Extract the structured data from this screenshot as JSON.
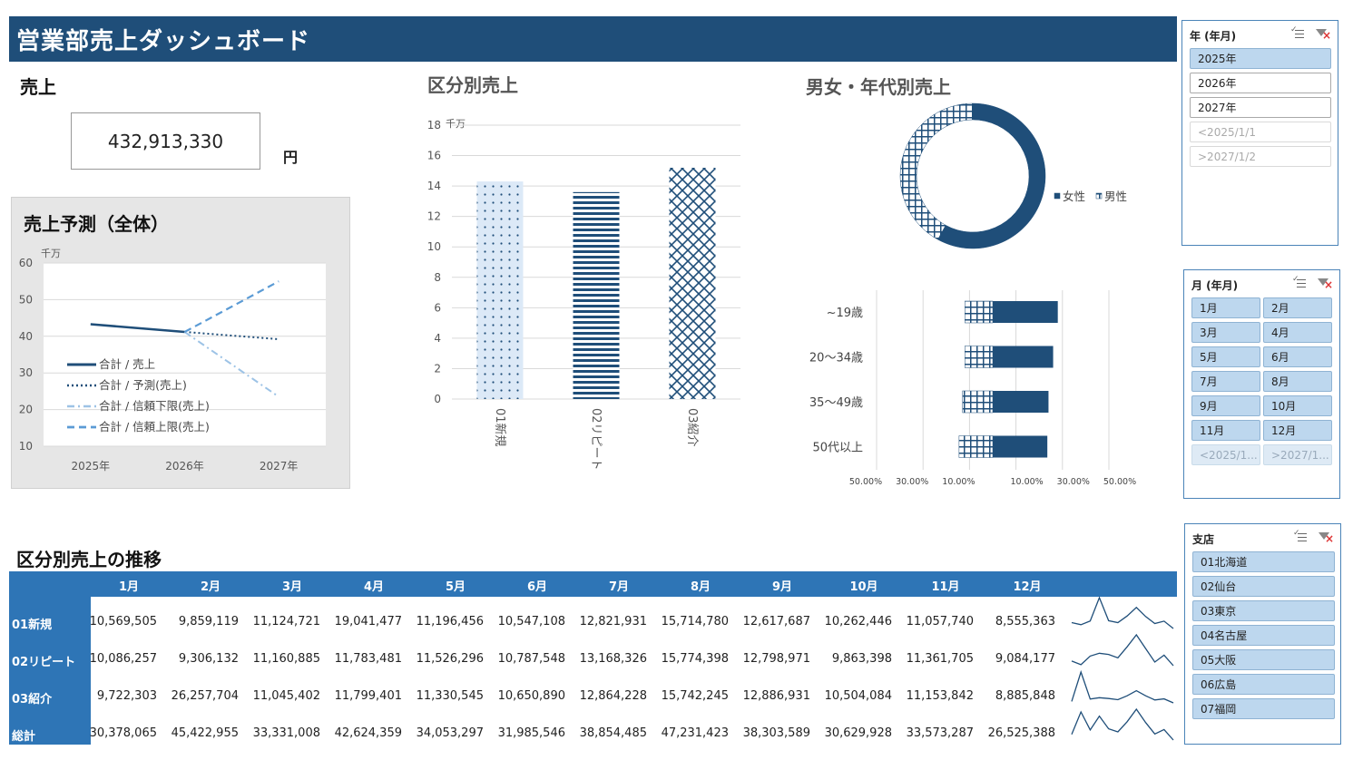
{
  "header": {
    "title": "営業部売上ダッシュボード"
  },
  "kpi": {
    "title": "売上",
    "value": "432,913,330",
    "unit": "円"
  },
  "forecast": {
    "title": "売上予測（全体）",
    "chart_data": {
      "type": "line",
      "unit_label": "千万",
      "categories": [
        "2025年",
        "2026年",
        "2027年"
      ],
      "ylim": [
        10,
        60
      ],
      "yticks": [
        "60",
        "50",
        "40",
        "30",
        "20",
        "10"
      ],
      "series": [
        {
          "name": "合計 / 売上",
          "values": [
            43.3,
            41.2,
            null
          ]
        },
        {
          "name": "合計 / 予測(売上)",
          "values": [
            null,
            41.2,
            39.2
          ]
        },
        {
          "name": "合計 / 信頼下限(売上)",
          "values": [
            null,
            41.2,
            23.5
          ]
        },
        {
          "name": "合計 / 信頼上限(売上)",
          "values": [
            null,
            41.2,
            55.0
          ]
        }
      ],
      "legend": "inside-left"
    }
  },
  "category_sales": {
    "title": "区分別売上",
    "chart_data": {
      "type": "bar",
      "unit_label": "千万",
      "categories": [
        "01新規",
        "02リピート",
        "03紹介"
      ],
      "values": [
        14.3,
        13.6,
        15.2
      ],
      "ylim": [
        0,
        18
      ],
      "yticks": [
        "18",
        "16",
        "14",
        "12",
        "10",
        "8",
        "6",
        "4",
        "2",
        "0"
      ]
    }
  },
  "gender_age": {
    "title": "男女・年代別売上",
    "donut": {
      "chart_data": {
        "type": "pie",
        "categories": [
          "女性",
          "男性"
        ],
        "values": [
          58,
          42
        ]
      }
    },
    "bars": {
      "chart_data": {
        "type": "bar",
        "orientation": "horizontal",
        "categories": [
          "~19歳",
          "20～34歳",
          "35～49歳",
          "50代以上"
        ],
        "series": [
          {
            "name": "男性",
            "values": [
              -12,
              -12,
              -13,
              -14.5
            ]
          },
          {
            "name": "女性",
            "values": [
              28,
              26,
              24,
              23.5
            ]
          }
        ],
        "xticks": [
          "50.00%",
          "30.00%",
          "10.00%",
          "10.00%",
          "30.00%",
          "50.00%"
        ]
      }
    }
  },
  "slicers": {
    "year": {
      "title": "年 (年月)",
      "items": [
        "2025年",
        "2026年",
        "2027年",
        "<2025/1/1",
        ">2027/1/2"
      ]
    },
    "month": {
      "title": "月 (年月)",
      "items": [
        "1月",
        "2月",
        "3月",
        "4月",
        "5月",
        "6月",
        "7月",
        "8月",
        "9月",
        "10月",
        "11月",
        "12月",
        "<2025/1...",
        ">2027/1..."
      ]
    },
    "branch": {
      "title": "支店",
      "items": [
        "01北海道",
        "02仙台",
        "03東京",
        "04名古屋",
        "05大阪",
        "06広島",
        "07福岡"
      ]
    }
  },
  "trend_table": {
    "title": "区分別売上の推移",
    "months": [
      "1月",
      "2月",
      "3月",
      "4月",
      "5月",
      "6月",
      "7月",
      "8月",
      "9月",
      "10月",
      "11月",
      "12月"
    ],
    "rows": [
      {
        "label": "01新規",
        "values": [
          "10,569,505",
          "9,859,119",
          "11,124,721",
          "19,041,477",
          "11,196,456",
          "10,547,108",
          "12,821,931",
          "15,714,780",
          "12,617,687",
          "10,262,446",
          "11,057,740",
          "8,555,363"
        ]
      },
      {
        "label": "02リピート",
        "values": [
          "10,086,257",
          "9,306,132",
          "11,160,885",
          "11,783,481",
          "11,526,296",
          "10,787,548",
          "13,168,326",
          "15,774,398",
          "12,798,971",
          "9,863,398",
          "11,361,705",
          "9,084,177"
        ]
      },
      {
        "label": "03紹介",
        "values": [
          "9,722,303",
          "26,257,704",
          "11,045,402",
          "11,799,401",
          "11,330,545",
          "10,650,890",
          "12,864,228",
          "15,742,245",
          "12,886,931",
          "10,504,084",
          "11,153,842",
          "8,885,848"
        ]
      },
      {
        "label": "総計",
        "values": [
          "30,378,065",
          "45,422,955",
          "33,331,008",
          "42,624,359",
          "34,053,297",
          "31,985,546",
          "38,854,485",
          "47,231,423",
          "38,303,589",
          "30,629,928",
          "33,573,287",
          "26,525,388"
        ]
      }
    ]
  },
  "colors": {
    "navy": "#1f4e79",
    "table_blue": "#2e75b6",
    "slicer_selected": "#bdd7ee"
  }
}
